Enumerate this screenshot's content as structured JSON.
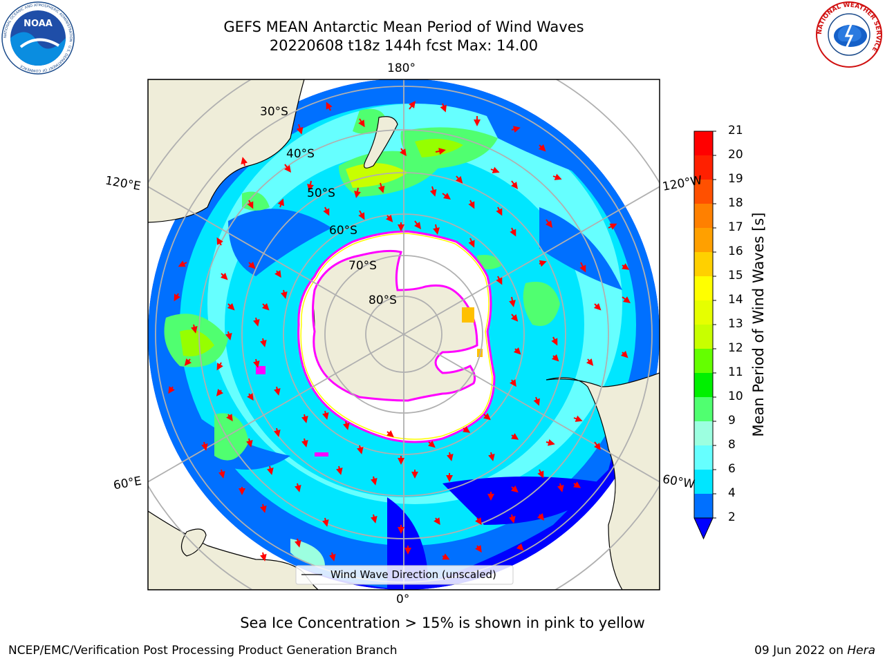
{
  "header": {
    "title_line1": "GEFS MEAN Antarctic Mean Period of Wind Waves",
    "title_line2": "20220608 t18z 144h fcst   Max: 14.00"
  },
  "logos": {
    "noaa_text": "NOAA",
    "noaa_ring_text": "NATIONAL OCEANIC AND ATMOSPHERIC ADMINISTRATION · U.S. DEPARTMENT OF COMMERCE",
    "nws_ring_text": "NATIONAL WEATHER SERVICE"
  },
  "map": {
    "longitude_labels": [
      "180°",
      "120°E",
      "120°W",
      "60°E",
      "60°W",
      "0°"
    ],
    "latitude_labels": [
      "30°S",
      "40°S",
      "50°S",
      "60°S",
      "70°S",
      "80°S"
    ],
    "legend_label": "Wind Wave Direction (unscaled)",
    "colors": {
      "ocean_low": "#0000ff",
      "land": "#efedd9",
      "sea_ice": "#ffffff",
      "ice_edge": "#ff00ff",
      "arrow": "#ff0000"
    }
  },
  "colorbar": {
    "title": "Mean Period of Wind Waves [s]",
    "ticks": [
      "21",
      "20",
      "19",
      "18",
      "17",
      "16",
      "15",
      "14",
      "13",
      "12",
      "11",
      "10",
      "9",
      "8",
      "6",
      "4",
      "2"
    ],
    "colors": [
      "#ff0000",
      "#ff2000",
      "#ff5000",
      "#ff8000",
      "#ffa000",
      "#ffc000",
      "#ffff00",
      "#e6ff00",
      "#c8ff00",
      "#96ff00",
      "#64ff00",
      "#00f000",
      "#50ff70",
      "#9cffe0",
      "#66ffff",
      "#00e6ff",
      "#00b0ff",
      "#0070ff"
    ]
  },
  "footer": {
    "caption": "Sea Ice Concentration > 15% is shown in pink to yellow",
    "left": "NCEP/EMC/Verification Post Processing Product Generation Branch",
    "right_date": "09 Jun 2022 on",
    "right_host": "Hera"
  }
}
